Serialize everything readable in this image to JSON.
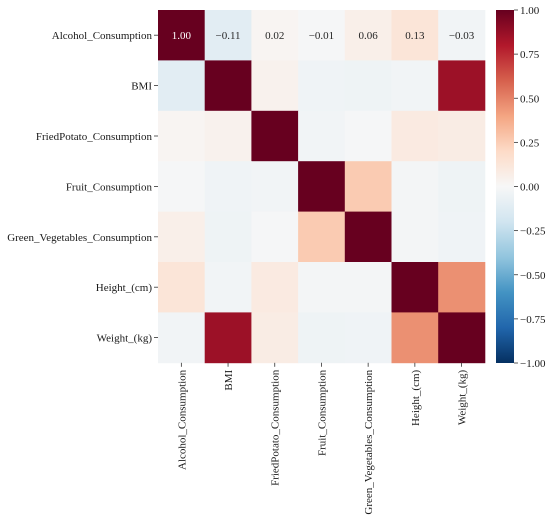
{
  "chart_data": {
    "type": "heatmap",
    "title": "",
    "xlabel": "",
    "ylabel": "",
    "rows": [
      "Alcohol_Consumption",
      "BMI",
      "FriedPotato_Consumption",
      "Fruit_Consumption",
      "Green_Vegetables_Consumption",
      "Height_(cm)",
      "Weight_(kg)"
    ],
    "columns": [
      "Alcohol_Consumption",
      "BMI",
      "FriedPotato_Consumption",
      "Fruit_Consumption",
      "Green_Vegetables_Consumption",
      "Height_(cm)",
      "Weight_(kg)"
    ],
    "values": [
      [
        1.0,
        -0.11,
        0.02,
        -0.01,
        0.06,
        0.13,
        -0.03
      ],
      [
        -0.11,
        1.0,
        0.04,
        -0.04,
        -0.05,
        -0.03,
        0.86
      ],
      [
        0.02,
        0.04,
        1.0,
        -0.03,
        -0.01,
        0.09,
        0.08
      ],
      [
        -0.01,
        -0.04,
        -0.03,
        1.0,
        0.26,
        -0.02,
        -0.05
      ],
      [
        0.06,
        -0.05,
        -0.01,
        0.26,
        1.0,
        -0.02,
        -0.04
      ],
      [
        0.13,
        -0.03,
        0.09,
        -0.02,
        -0.02,
        1.0,
        0.46
      ],
      [
        -0.03,
        0.86,
        0.08,
        -0.05,
        -0.04,
        0.46,
        1.0
      ]
    ],
    "annotated_row": 0,
    "annotations": [
      "1.00",
      "−0.11",
      "0.02",
      "−0.01",
      "0.06",
      "0.13",
      "−0.03"
    ],
    "colormap": "RdBu_r",
    "vmin": -1.0,
    "vmax": 1.0,
    "colorbar_ticks": [
      "1.00",
      "0.75",
      "0.50",
      "0.25",
      "0.00",
      "−0.25",
      "−0.50",
      "−0.75",
      "−1.00"
    ],
    "colorbar_tick_values": [
      1.0,
      0.75,
      0.5,
      0.25,
      0.0,
      -0.25,
      -0.5,
      -0.75,
      -1.0
    ]
  }
}
